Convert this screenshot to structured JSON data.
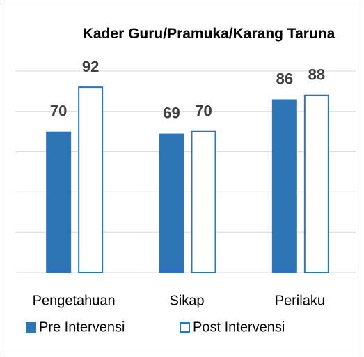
{
  "chart_data": {
    "type": "bar",
    "title": "Kader Guru/Pramuka/Karang Taruna",
    "categories": [
      "Pengetahuan",
      "Sikap",
      "Perilaku"
    ],
    "series": [
      {
        "name": "Pre Intervensi",
        "color": "#2e75b6",
        "values": [
          70,
          69,
          86
        ]
      },
      {
        "name": "Post Intervensi",
        "color": "#2e75b6",
        "values": [
          92,
          70,
          88
        ]
      }
    ],
    "ylim": [
      0,
      100
    ],
    "yticks": [
      0,
      20,
      40,
      60,
      80,
      100
    ],
    "grid": true,
    "legend": "bottom"
  }
}
